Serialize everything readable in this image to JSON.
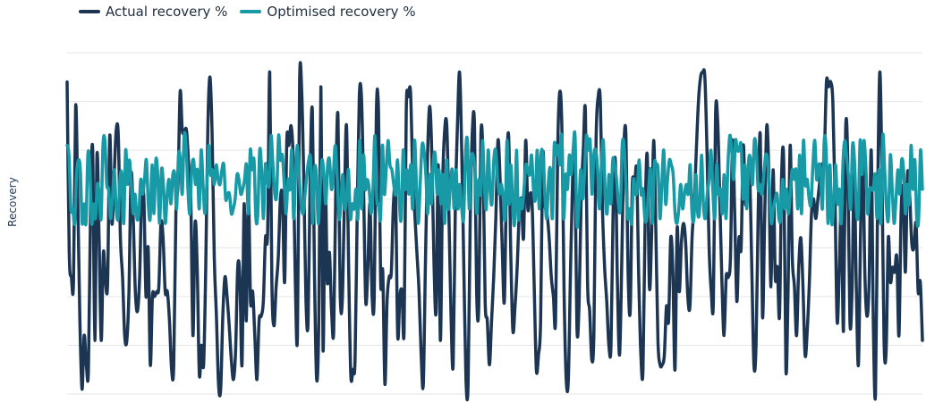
{
  "chart_data": {
    "type": "line",
    "title": "",
    "xlabel": "",
    "ylabel": "Recovery",
    "ylim": [
      0,
      7
    ],
    "grid": true,
    "legend": "top-left",
    "series": [
      {
        "name": "Actual recovery %",
        "color": "#1b3553",
        "values": [
          6.4,
          2.9,
          2.4,
          2.3,
          5.9,
          4.0,
          1.5,
          0.1,
          1.2,
          0.6,
          0.5,
          3.8,
          5.0,
          1.1,
          4.9,
          3.2,
          1.1,
          2.9,
          2.3,
          2.3,
          5.3,
          3.5,
          4.4,
          5.4,
          5.3,
          3.2,
          2.4,
          1.2,
          1.1,
          2.1,
          4.5,
          3.6,
          2.1,
          1.7,
          2.4,
          4.1,
          4.0,
          2.0,
          3.0,
          0.6,
          2.0,
          2.0,
          2.1,
          2.2,
          3.5,
          3.2,
          2.1,
          2.1,
          1.5,
          0.5,
          0.6,
          3.7,
          4.3,
          6.2,
          5.4,
          5.4,
          5.4,
          4.7,
          4.0,
          1.2,
          3.5,
          2.6,
          0.4,
          1.0,
          0.6,
          2.6,
          5.5,
          6.5,
          5.3,
          2.8,
          1.6,
          0.2,
          0.1,
          1.6,
          2.4,
          2.0,
          1.4,
          0.7,
          0.3,
          0.9,
          2.6,
          2.4,
          0.6,
          3.9,
          1.5,
          4.1,
          1.9,
          2.1,
          1.2,
          0.3,
          1.5,
          1.6,
          1.9,
          3.2,
          3.3,
          6.6,
          2.3,
          1.4,
          2.2,
          2.8,
          4.0,
          4.0,
          2.3,
          5.2,
          5.1,
          5.5,
          4.8,
          2.3,
          1.2,
          6.4,
          6.2,
          4.3,
          1.9,
          1.5,
          4.6,
          5.8,
          2.4,
          0.3,
          1.5,
          6.3,
          0.9,
          4.4,
          2.3,
          2.9,
          1.7,
          1.3,
          4.3,
          5.7,
          2.1,
          1.9,
          3.9,
          5.5,
          2.6,
          0.4,
          0.5,
          0.7,
          3.7,
          6.1,
          6.1,
          4.2,
          1.9,
          2.6,
          3.9,
          2.0,
          2.0,
          5.8,
          5.8,
          2.3,
          2.5,
          0.2,
          1.9,
          2.4,
          2.5,
          3.9,
          4.1,
          1.2,
          2.0,
          2.1,
          1.3,
          5.8,
          6.1,
          6.2,
          4.6,
          3.7,
          2.9,
          2.1,
          0.8,
          0.2,
          2.7,
          4.9,
          5.9,
          4.9,
          2.7,
          1.7,
          4.7,
          1.1,
          4.2,
          5.4,
          5.5,
          3.7,
          1.6,
          0.6,
          3.8,
          5.5,
          6.6,
          5.0,
          2.6,
          0.3,
          0.2,
          3.6,
          5.4,
          5.5,
          2.1,
          1.8,
          5.3,
          4.8,
          1.9,
          1.5,
          0.6,
          1.5,
          2.4,
          3.6,
          5.2,
          4.4,
          3.0,
          1.9,
          4.4,
          5.3,
          2.9,
          1.3,
          1.8,
          2.6,
          3.7,
          4.0,
          3.2,
          5.2,
          3.8,
          4.1,
          3.9,
          2.2,
          0.5,
          0.8,
          1.5,
          4.9,
          3.9,
          3.7,
          3.2,
          2.4,
          2.0,
          1.5,
          5.0,
          6.2,
          5.4,
          2.1,
          0.3,
          0.3,
          2.5,
          4.4,
          5.0,
          1.4,
          1.8,
          4.0,
          5.0,
          5.8,
          2.3,
          1.7,
          0.7,
          1.3,
          5.2,
          6.1,
          6.0,
          3.8,
          2.6,
          1.9,
          1.0,
          1.0,
          3.8,
          4.8,
          2.3,
          0.8,
          2.6,
          5.0,
          5.3,
          2.5,
          1.7,
          4.3,
          4.2,
          4.6,
          2.4,
          0.8,
          0.5,
          3.6,
          4.9,
          2.2,
          3.2,
          5.2,
          3.4,
          1.1,
          0.6,
          0.6,
          0.8,
          1.8,
          1.5,
          3.2,
          2.5,
          0.5,
          3.4,
          2.1,
          3.1,
          3.5,
          3.1,
          2.0,
          1.8,
          3.2,
          3.9,
          5.0,
          6.0,
          6.5,
          6.6,
          6.5,
          5.0,
          3.0,
          2.1,
          1.9,
          5.7,
          5.6,
          4.0,
          2.3,
          1.2,
          2.4,
          2.4,
          2.8,
          5.2,
          3.7,
          1.9,
          3.2,
          3.0,
          5.1,
          3.9,
          4.3,
          4.5,
          2.6,
          0.6,
          1.0,
          3.7,
          5.3,
          1.6,
          3.5,
          5.5,
          4.5,
          2.2,
          4.6,
          2.4,
          2.6,
          1.6,
          4.5,
          4.7,
          0.5,
          2.1,
          5.1,
          2.8,
          2.2,
          1.2,
          2.6,
          3.2,
          2.2,
          0.8,
          1.3,
          2.3,
          3.7,
          4.0,
          3.6,
          4.0,
          4.4,
          4.7,
          4.9,
          6.4,
          6.3,
          6.4,
          6.0,
          4.1,
          1.5,
          2.5,
          3.9,
          1.3,
          5.4,
          4.8,
          1.5,
          2.1,
          4.5,
          2.2,
          0.6,
          3.3,
          5.0,
          2.5,
          1.6,
          2.3,
          5.0,
          1.4,
          0.0,
          4.0,
          6.6,
          4.6,
          1.1,
          0.9,
          3.2,
          2.3,
          2.6,
          2.5,
          2.8,
          1.2,
          3.7,
          4.2,
          2.5,
          4.5,
          4.1,
          3.1,
          3.0,
          3.5,
          2.1,
          2.3,
          1.1
        ]
      },
      {
        "name": "Optimised recovery %",
        "color": "#1899a6",
        "values": [
          5.1,
          4.9,
          3.8,
          3.8,
          3.5,
          4.5,
          4.8,
          4.6,
          3.5,
          3.9,
          3.5,
          4.9,
          4.7,
          3.5,
          3.9,
          3.6,
          4.3,
          4.1,
          3.6,
          5.1,
          5.2,
          4.3,
          4.2,
          3.6,
          4.0,
          4.6,
          3.8,
          3.6,
          4.4,
          4.5,
          3.5,
          5.0,
          4.3,
          4.8,
          4.3,
          3.7,
          4.1,
          3.6,
          3.7,
          4.4,
          4.1,
          4.4,
          4.8,
          3.9,
          3.6,
          4.7,
          3.7,
          4.8,
          4.5,
          3.5,
          4.6,
          4.3,
          3.5,
          4.1,
          4.4,
          3.9,
          4.5,
          4.5,
          3.8,
          4.9,
          4.8,
          4.1,
          5.3,
          5.1,
          4.2,
          3.7,
          4.6,
          4.8,
          4.3,
          4.6,
          3.8,
          5.0,
          4.3,
          3.7,
          4.3,
          5.1,
          4.5,
          4.6,
          4.3,
          4.7,
          4.4,
          4.3,
          4.6,
          4.7,
          4.0,
          4.1,
          4.1,
          3.7,
          3.8,
          4.0,
          4.5,
          4.4,
          4.1,
          4.2,
          4.4,
          4.7,
          3.7,
          5.0,
          4.6,
          4.8,
          3.6,
          3.7,
          5.0,
          4.6,
          3.6,
          4.7,
          4.4,
          4.3,
          5.3,
          4.7,
          4.1,
          4.1,
          5.3,
          4.8,
          4.9,
          4.3,
          3.7,
          4.4,
          4.2,
          5.0,
          3.6,
          4.5,
          5.1,
          4.4,
          3.9,
          3.7,
          4.1,
          4.5,
          4.8,
          4.8,
          3.5,
          4.6,
          4.5,
          3.5,
          4.2,
          4.8,
          4.5,
          3.9,
          4.7,
          4.8,
          4.2,
          4.5,
          5.1,
          4.5,
          3.6,
          3.9,
          4.5,
          3.8,
          4.0,
          4.6,
          3.6,
          3.9,
          3.8,
          4.2,
          3.6,
          5.2,
          3.8,
          4.9,
          4.2,
          4.4,
          4.2,
          3.7,
          4.2,
          5.3,
          4.0,
          3.9,
          3.6,
          5.1,
          4.1,
          4.6,
          5.2,
          4.7,
          4.6,
          4.3,
          4.1,
          4.8,
          3.9,
          3.6,
          5.0,
          4.2,
          4.6,
          4.1,
          4.7,
          3.8,
          5.2,
          4.3,
          3.5,
          4.3,
          5.1,
          5.0,
          4.5,
          3.7,
          4.5,
          3.9,
          4.8,
          4.9,
          4.1,
          4.6,
          3.9,
          4.5,
          3.5,
          4.8,
          3.8,
          4.3,
          4.6,
          3.8,
          4.6,
          3.8,
          4.3,
          3.8,
          3.6,
          4.9,
          5.2,
          3.8,
          4.8,
          4.9,
          4.6,
          3.7,
          4.4,
          4.1,
          5.2,
          4.3,
          3.8,
          5.0,
          4.2,
          3.9,
          4.8,
          5.0,
          4.4,
          4.1,
          4.3,
          4.0,
          3.6,
          5.2,
          3.9,
          4.7,
          3.9,
          3.5,
          5.0,
          3.6,
          4.0,
          3.8,
          4.2,
          4.7,
          4.6,
          4.5,
          4.9,
          4.2,
          4.0,
          5.0,
          3.8,
          4.9,
          4.9,
          4.1,
          3.6,
          4.4,
          4.6,
          3.6,
          5.1,
          4.9,
          5.1,
          4.7,
          5.3,
          3.6,
          4.5,
          4.2,
          4.9,
          4.5,
          5.0,
          5.3,
          3.5,
          3.8,
          4.6,
          4.0,
          4.5,
          5.3,
          5.0,
          5.2,
          4.1,
          4.9,
          5.0,
          4.6,
          3.8,
          4.7,
          5.2,
          4.1,
          3.7,
          4.5,
          3.9,
          4.8,
          4.7,
          4.4,
          3.9,
          3.8,
          5.1,
          5.1,
          4.3,
          3.6,
          3.8,
          3.5,
          4.4,
          4.1,
          4.2,
          4.8,
          4.1,
          4.2,
          3.6,
          3.6,
          4.2,
          4.6,
          3.5,
          4.7,
          4.7,
          4.6,
          3.6,
          4.3,
          5.0,
          3.9,
          4.4,
          4.8,
          4.7,
          4.5,
          3.7,
          3.5,
          3.8,
          4.3,
          3.8,
          4.1,
          4.3,
          4.1,
          4.7,
          3.7,
          3.6,
          4.5,
          3.7,
          3.8,
          4.9,
          3.9,
          3.6,
          4.1,
          4.4,
          5.0,
          4.2,
          3.6,
          4.7,
          4.1,
          4.2,
          3.7,
          4.5,
          3.6,
          4.7,
          5.3,
          5.0,
          4.4,
          5.2,
          5.0,
          5.0,
          5.1,
          4.0,
          4.7,
          3.8,
          4.8,
          4.8,
          4.3,
          5.2,
          5.0,
          4.2,
          4.3,
          4.1,
          4.5,
          4.9,
          4.8,
          4.2,
          3.5,
          3.8,
          4.0,
          4.1,
          3.6,
          3.6,
          4.4,
          3.8,
          4.2,
          3.7,
          4.1,
          4.6,
          4.4,
          4.6,
          3.8,
          4.9,
          3.7,
          5.2,
          4.3,
          4.4,
          4.0,
          3.9,
          4.7,
          5.2,
          4.4,
          4.7,
          4.6,
          3.8,
          5.2,
          5.0,
          3.5,
          4.7,
          3.5,
          3.9,
          4.7,
          3.9,
          4.2,
          3.5,
          4.8,
          5.2,
          4.8,
          4.4,
          3.8,
          5.1,
          4.8,
          3.8,
          3.7,
          5.2,
          4.5,
          5.2,
          4.7,
          3.7,
          4.2,
          4.2,
          4.2,
          4.5,
          3.6,
          4.6,
          3.5,
          5.3,
          4.6,
          3.8,
          3.6,
          4.9,
          4.2,
          3.5,
          4.0,
          4.6,
          4.1,
          4.8,
          4.6,
          3.7,
          4.3,
          3.9,
          5.1,
          4.2,
          4.8,
          3.6,
          3.6,
          5.0,
          4.2
        ]
      }
    ]
  }
}
